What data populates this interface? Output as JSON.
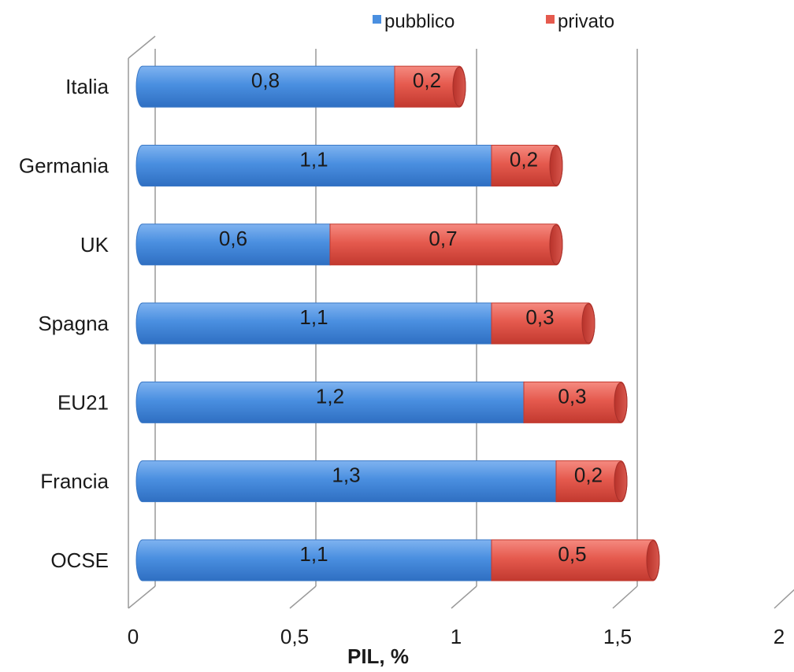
{
  "chart_data": {
    "type": "bar",
    "orientation": "horizontal",
    "stacked": true,
    "categories": [
      "Italia",
      "Germania",
      "UK",
      "Spagna",
      "EU21",
      "Francia",
      "OCSE"
    ],
    "series": [
      {
        "name": "pubblico",
        "color": "#4a8fe0",
        "values": [
          0.8,
          1.1,
          0.6,
          1.1,
          1.2,
          1.3,
          1.1
        ],
        "labels": [
          "0,8",
          "1,1",
          "0,6",
          "1,1",
          "1,2",
          "1,3",
          "1,1"
        ]
      },
      {
        "name": "privato",
        "color": "#e55a4e",
        "values": [
          0.2,
          0.2,
          0.7,
          0.3,
          0.3,
          0.2,
          0.5
        ],
        "labels": [
          "0,2",
          "0,2",
          "0,7",
          "0,3",
          "0,3",
          "0,2",
          "0,5"
        ]
      }
    ],
    "xlabel": "PIL, %",
    "ylabel": "",
    "xlim": [
      0,
      2
    ],
    "xticks": [
      0,
      0.5,
      1,
      1.5,
      2
    ],
    "xtick_labels": [
      "0",
      "0,5",
      "1",
      "1,5",
      "2"
    ],
    "grid": true,
    "legend_position": "top"
  }
}
